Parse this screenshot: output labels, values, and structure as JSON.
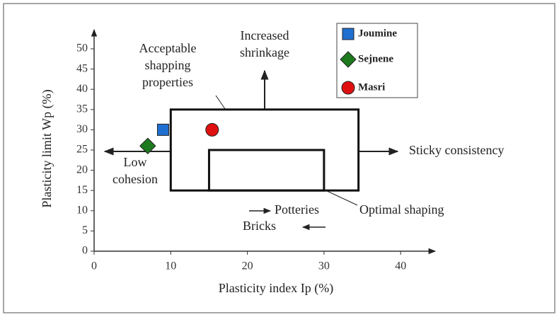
{
  "chart_data": {
    "type": "scatter",
    "x_label": "Plasticity index Ip (%)",
    "y_label": "Plasticity limit Wp (%)",
    "xlim": [
      0,
      45
    ],
    "ylim": [
      0,
      54
    ],
    "xticks": [
      0,
      10,
      20,
      30,
      40
    ],
    "yticks": [
      0,
      5,
      10,
      15,
      20,
      25,
      30,
      35,
      40,
      45,
      50
    ],
    "series": [
      {
        "name": "Joumine",
        "color": "#1f6fd1",
        "marker": "square",
        "x": [
          9
        ],
        "y": [
          30
        ]
      },
      {
        "name": "Sejnene",
        "color": "#1e7a1e",
        "marker": "diamond",
        "x": [
          7
        ],
        "y": [
          26
        ]
      },
      {
        "name": "Masri",
        "color": "#e01010",
        "marker": "circle",
        "x": [
          15.4
        ],
        "y": [
          30
        ]
      }
    ],
    "regions": [
      {
        "x": [
          10,
          34.5
        ],
        "y": [
          15,
          35
        ]
      },
      {
        "x": [
          15,
          30
        ],
        "y": [
          15,
          25
        ]
      }
    ],
    "annotations": [
      {
        "lines": [
          "Increased",
          "shrinkage"
        ]
      },
      {
        "lines": [
          "Acceptable",
          "shapping",
          "properties"
        ]
      },
      {
        "lines": [
          "Low",
          "cohesion"
        ]
      },
      {
        "lines": [
          "Sticky consistency"
        ]
      },
      {
        "lines": [
          "Optimal shaping"
        ]
      },
      {
        "lines": [
          "Potteries"
        ]
      },
      {
        "lines": [
          "Bricks"
        ]
      }
    ]
  }
}
